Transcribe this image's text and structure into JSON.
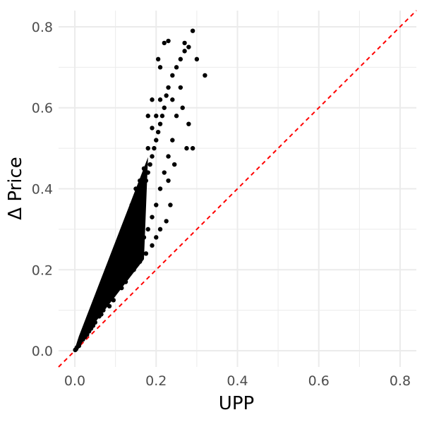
{
  "chart_data": {
    "type": "scatter",
    "xlabel": "UPP",
    "ylabel": "Δ Price",
    "xlim": [
      -0.04,
      0.84
    ],
    "ylim": [
      -0.04,
      0.84
    ],
    "x_ticks": [
      0.0,
      0.2,
      0.4,
      0.6,
      0.8
    ],
    "x_tick_labels": [
      "0.0",
      "0.2",
      "0.4",
      "0.6",
      "0.8"
    ],
    "y_ticks": [
      0.0,
      0.2,
      0.4,
      0.6,
      0.8
    ],
    "y_tick_labels": [
      "0.0",
      "0.2",
      "0.4",
      "0.6",
      "0.8"
    ],
    "grid": true,
    "reference_line": {
      "slope": 1,
      "intercept": 0,
      "style": "dashed",
      "color": "#ff0000"
    },
    "point_color": "#000000",
    "series": [
      {
        "values": [
          [
            0.005,
            0.008
          ],
          [
            0.01,
            0.015
          ],
          [
            0.012,
            0.02
          ],
          [
            0.015,
            0.025
          ],
          [
            0.02,
            0.032
          ],
          [
            0.022,
            0.04
          ],
          [
            0.025,
            0.045
          ],
          [
            0.03,
            0.05
          ],
          [
            0.032,
            0.06
          ],
          [
            0.035,
            0.065
          ],
          [
            0.04,
            0.07
          ],
          [
            0.042,
            0.08
          ],
          [
            0.045,
            0.085
          ],
          [
            0.05,
            0.09
          ],
          [
            0.052,
            0.1
          ],
          [
            0.055,
            0.105
          ],
          [
            0.06,
            0.11
          ],
          [
            0.062,
            0.12
          ],
          [
            0.065,
            0.125
          ],
          [
            0.07,
            0.13
          ],
          [
            0.072,
            0.14
          ],
          [
            0.075,
            0.145
          ],
          [
            0.08,
            0.15
          ],
          [
            0.082,
            0.16
          ],
          [
            0.085,
            0.17
          ],
          [
            0.09,
            0.175
          ],
          [
            0.092,
            0.185
          ],
          [
            0.095,
            0.19
          ],
          [
            0.1,
            0.2
          ],
          [
            0.102,
            0.21
          ],
          [
            0.105,
            0.22
          ],
          [
            0.11,
            0.23
          ],
          [
            0.112,
            0.24
          ],
          [
            0.115,
            0.25
          ],
          [
            0.12,
            0.26
          ],
          [
            0.122,
            0.27
          ],
          [
            0.125,
            0.28
          ],
          [
            0.13,
            0.29
          ],
          [
            0.132,
            0.3
          ],
          [
            0.135,
            0.31
          ],
          [
            0.14,
            0.32
          ],
          [
            0.142,
            0.33
          ],
          [
            0.145,
            0.34
          ],
          [
            0.15,
            0.35
          ],
          [
            0.152,
            0.36
          ],
          [
            0.155,
            0.37
          ],
          [
            0.16,
            0.38
          ],
          [
            0.165,
            0.395
          ],
          [
            0.17,
            0.41
          ],
          [
            0.175,
            0.42
          ],
          [
            0.18,
            0.44
          ],
          [
            0.185,
            0.46
          ],
          [
            0.19,
            0.48
          ],
          [
            0.195,
            0.5
          ],
          [
            0.2,
            0.52
          ],
          [
            0.205,
            0.54
          ],
          [
            0.21,
            0.56
          ],
          [
            0.215,
            0.58
          ],
          [
            0.22,
            0.6
          ],
          [
            0.225,
            0.63
          ],
          [
            0.23,
            0.65
          ],
          [
            0.24,
            0.68
          ],
          [
            0.25,
            0.7
          ],
          [
            0.26,
            0.72
          ],
          [
            0.27,
            0.74
          ],
          [
            0.28,
            0.75
          ],
          [
            0.29,
            0.79
          ],
          [
            0.22,
            0.76
          ],
          [
            0.23,
            0.765
          ],
          [
            0.27,
            0.76
          ],
          [
            0.32,
            0.68
          ],
          [
            0.3,
            0.72
          ],
          [
            0.26,
            0.65
          ],
          [
            0.25,
            0.58
          ],
          [
            0.24,
            0.52
          ],
          [
            0.23,
            0.48
          ],
          [
            0.22,
            0.44
          ],
          [
            0.21,
            0.4
          ],
          [
            0.2,
            0.36
          ],
          [
            0.19,
            0.33
          ],
          [
            0.18,
            0.3
          ],
          [
            0.17,
            0.28
          ],
          [
            0.16,
            0.26
          ],
          [
            0.15,
            0.24
          ],
          [
            0.14,
            0.22
          ],
          [
            0.13,
            0.2
          ],
          [
            0.12,
            0.18
          ],
          [
            0.11,
            0.16
          ],
          [
            0.1,
            0.15
          ],
          [
            0.09,
            0.13
          ],
          [
            0.08,
            0.12
          ],
          [
            0.07,
            0.1
          ],
          [
            0.06,
            0.085
          ],
          [
            0.05,
            0.07
          ],
          [
            0.04,
            0.055
          ],
          [
            0.03,
            0.04
          ],
          [
            0.02,
            0.028
          ],
          [
            0.01,
            0.012
          ],
          [
            0.003,
            0.004
          ],
          [
            0.001,
            0.002
          ],
          [
            0.14,
            0.36
          ],
          [
            0.15,
            0.4
          ],
          [
            0.16,
            0.42
          ],
          [
            0.17,
            0.45
          ],
          [
            0.18,
            0.5
          ],
          [
            0.19,
            0.55
          ],
          [
            0.2,
            0.58
          ],
          [
            0.21,
            0.62
          ],
          [
            0.19,
            0.62
          ],
          [
            0.18,
            0.58
          ],
          [
            0.21,
            0.7
          ],
          [
            0.205,
            0.72
          ],
          [
            0.24,
            0.62
          ],
          [
            0.265,
            0.6
          ],
          [
            0.28,
            0.56
          ],
          [
            0.275,
            0.5
          ],
          [
            0.29,
            0.5
          ],
          [
            0.245,
            0.46
          ],
          [
            0.23,
            0.42
          ],
          [
            0.235,
            0.36
          ],
          [
            0.225,
            0.32
          ],
          [
            0.21,
            0.3
          ],
          [
            0.2,
            0.28
          ],
          [
            0.19,
            0.26
          ],
          [
            0.175,
            0.24
          ],
          [
            0.16,
            0.22
          ],
          [
            0.145,
            0.2
          ],
          [
            0.125,
            0.17
          ],
          [
            0.115,
            0.155
          ],
          [
            0.095,
            0.125
          ],
          [
            0.085,
            0.11
          ],
          [
            0.065,
            0.09
          ],
          [
            0.045,
            0.062
          ],
          [
            0.035,
            0.048
          ],
          [
            0.025,
            0.034
          ]
        ]
      }
    ]
  }
}
